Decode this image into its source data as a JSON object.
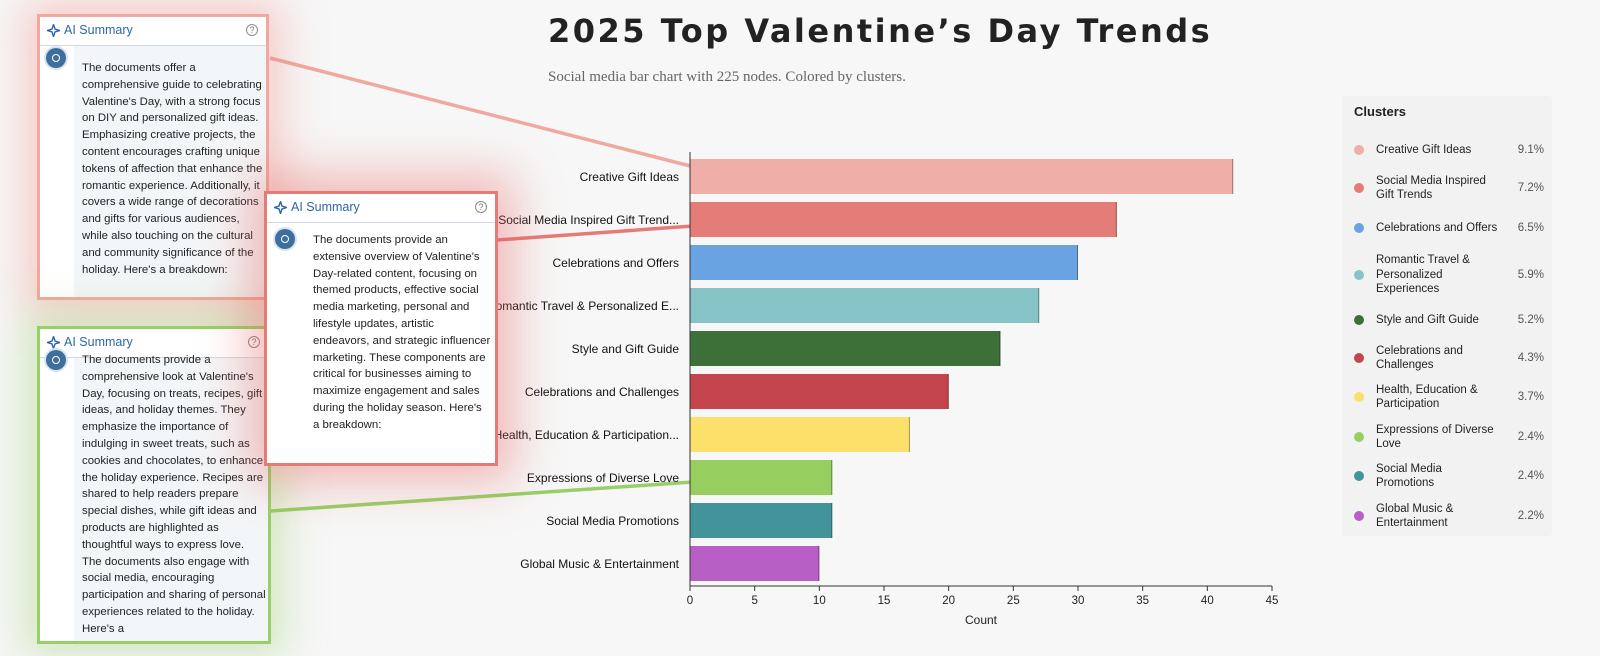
{
  "header": {
    "title": "2025 Top Valentine’s Day Trends",
    "subtitle": "Social media bar chart with 225 nodes. Colored by clusters."
  },
  "chart_data": {
    "type": "bar",
    "orientation": "horizontal",
    "categories": [
      "Creative Gift Ideas",
      "Social Media Inspired Gift Trend...",
      "Celebrations and Offers",
      "Romantic Travel & Personalized E...",
      "Style and Gift Guide",
      "Celebrations and Challenges",
      "Health, Education & Participation...",
      "Expressions of Diverse Love",
      "Social Media Promotions",
      "Global Music & Entertainment"
    ],
    "values": [
      42,
      33,
      30,
      27,
      24,
      20,
      17,
      11,
      11,
      10
    ],
    "colors": [
      "#f0aea9",
      "#e47c78",
      "#6aa3e2",
      "#85c3c6",
      "#3d7039",
      "#c4454b",
      "#fbe06b",
      "#96cf5f",
      "#43949a",
      "#b85fc6"
    ],
    "xlabel": "Count",
    "xlim": [
      0,
      45
    ],
    "xticks": [
      0,
      5,
      10,
      15,
      20,
      25,
      30,
      35,
      40,
      45
    ],
    "grid": false
  },
  "legend": {
    "title": "Clusters",
    "items": [
      {
        "label": "Creative Gift Ideas",
        "pct": "9.1%",
        "color": "#f0aea9"
      },
      {
        "label": "Social Media Inspired Gift Trends",
        "pct": "7.2%",
        "color": "#e47c78"
      },
      {
        "label": "Celebrations and Offers",
        "pct": "6.5%",
        "color": "#6aa3e2"
      },
      {
        "label": "Romantic Travel & Personalized Experiences",
        "pct": "5.9%",
        "color": "#85c3c6"
      },
      {
        "label": "Style and Gift Guide",
        "pct": "5.2%",
        "color": "#3d7039"
      },
      {
        "label": "Celebrations and Challenges",
        "pct": "4.3%",
        "color": "#c4454b"
      },
      {
        "label": "Health, Education & Participation",
        "pct": "3.7%",
        "color": "#fbe06b"
      },
      {
        "label": "Expressions of Diverse Love",
        "pct": "2.4%",
        "color": "#96cf5f"
      },
      {
        "label": "Social Media Promotions",
        "pct": "2.4%",
        "color": "#43949a"
      },
      {
        "label": "Global Music & Entertainment",
        "pct": "2.2%",
        "color": "#b85fc6"
      }
    ]
  },
  "summaries": [
    {
      "header": "AI Summary",
      "text": "The documents offer a comprehensive guide to celebrating Valentine's Day, with a strong focus on DIY and personalized gift ideas. Emphasizing creative projects, the content encourages crafting unique tokens of affection that enhance the romantic experience. Additionally, it covers a wide range of decorations and gifts for various audiences, while also touching on the cultural and community significance of the holiday. Here's a breakdown:"
    },
    {
      "header": "AI Summary",
      "text": "The documents provide an extensive overview of Valentine's Day-related content, focusing on themed products, effective social media marketing, personal and lifestyle updates, artistic endeavors, and strategic influencer marketing. These components are critical for businesses aiming to maximize engagement and sales during the holiday season. Here's a breakdown:"
    },
    {
      "header": "AI Summary",
      "text": "The documents provide a comprehensive look at Valentine's Day, focusing on treats, recipes, gift ideas, and holiday themes. They emphasize the importance of indulging in sweet treats, such as cookies and chocolates, to enhance the holiday experience. Recipes are shared to help readers prepare special dishes, while gift ideas and products are highlighted as thoughtful ways to express love. The documents also engage with social media, encouraging participation and sharing of personal experiences related to the holiday. Here's a"
    }
  ]
}
